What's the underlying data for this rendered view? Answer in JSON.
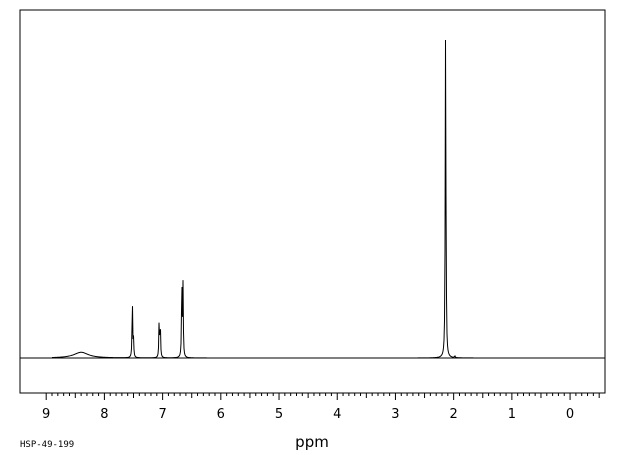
{
  "chart_data": {
    "type": "line",
    "title": "",
    "xlabel": "ppm",
    "ylabel": "",
    "xlim": [
      9.45,
      -0.6
    ],
    "x_reversed": true,
    "ylim": [
      0,
      1
    ],
    "grid": false,
    "ticks": [
      "9",
      "8",
      "7",
      "6",
      "5",
      "4",
      "3",
      "2",
      "1",
      "0"
    ],
    "tick_values": [
      9,
      8,
      7,
      6,
      5,
      4,
      3,
      2,
      1,
      0
    ],
    "peaks": [
      {
        "ppm": 8.4,
        "height": 0.018,
        "width": 0.3,
        "shape": "broad"
      },
      {
        "ppm": 7.52,
        "height": 0.188
      },
      {
        "ppm": 7.5,
        "height": 0.055
      },
      {
        "ppm": 7.06,
        "height": 0.115
      },
      {
        "ppm": 7.04,
        "height": 0.115
      },
      {
        "ppm": 6.67,
        "height": 0.25
      },
      {
        "ppm": 6.65,
        "height": 0.225
      },
      {
        "ppm": 2.14,
        "height": 1.0
      },
      {
        "ppm": 2.13,
        "height": 0.19
      },
      {
        "ppm": 1.98,
        "height": 0.006
      }
    ]
  },
  "footer": {
    "code": "HSP-49-199"
  }
}
